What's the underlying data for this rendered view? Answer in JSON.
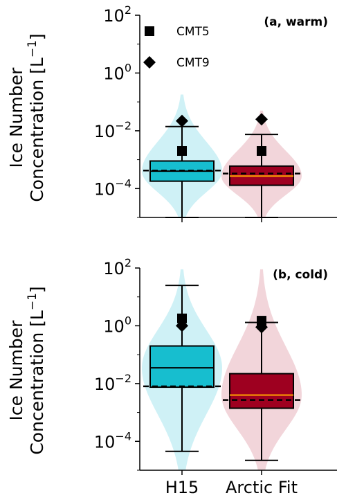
{
  "chart_data": [
    {
      "type": "box",
      "subtype": "box-and-violin",
      "panel_label": "(a, warm)",
      "ylabel_line1": "Ice Number",
      "ylabel_line2": "Concentration [L",
      "ylabel_sup": "−1",
      "ylabel_close": "]",
      "yscale": "log",
      "ylim": [
        1e-05,
        100
      ],
      "yticks": [
        {
          "base": "10",
          "exp": "2",
          "value": 100
        },
        {
          "base": "10",
          "exp": "0",
          "value": 1
        },
        {
          "base": "10",
          "exp": "−2",
          "value": 0.01
        },
        {
          "base": "10",
          "exp": "−4",
          "value": 0.0001
        }
      ],
      "categories": [
        "H15",
        "Arctic Fit"
      ],
      "legend_position": "upper-left",
      "legend": [
        {
          "label": "CMT5",
          "marker": "square"
        },
        {
          "label": "CMT9",
          "marker": "diamond"
        }
      ],
      "boxes": [
        {
          "category": "H15",
          "color": "#17becf",
          "violin_color": "#a8e6ef",
          "whisker_low": 1e-05,
          "q1": 0.00018,
          "median": 0.0004,
          "q3": 0.0009,
          "whisker_high": 0.014,
          "mean": 0.00042,
          "cmt5": 0.002,
          "cmt9": 0.022,
          "violin_range": [
            1e-05,
            0.18
          ]
        },
        {
          "category": "Arctic Fit",
          "color": "#9e0020",
          "violin_color": "#e8b2bc",
          "whisker_low": 1e-05,
          "q1": 0.00013,
          "median": 0.00027,
          "q3": 0.0006,
          "whisker_high": 0.0075,
          "mean": 0.00033,
          "cmt5": 0.002,
          "cmt9": 0.025,
          "violin_range": [
            1e-05,
            0.05
          ]
        }
      ]
    },
    {
      "type": "box",
      "subtype": "box-and-violin",
      "panel_label": "(b, cold)",
      "ylabel_line1": "Ice Number",
      "ylabel_line2": "Concentration [L",
      "ylabel_sup": "−1",
      "ylabel_close": "]",
      "yscale": "log",
      "ylim": [
        1e-05,
        100
      ],
      "yticks": [
        {
          "base": "10",
          "exp": "2",
          "value": 100
        },
        {
          "base": "10",
          "exp": "0",
          "value": 1
        },
        {
          "base": "10",
          "exp": "−2",
          "value": 0.01
        },
        {
          "base": "10",
          "exp": "−4",
          "value": 0.0001
        }
      ],
      "categories": [
        "H15",
        "Arctic Fit"
      ],
      "boxes": [
        {
          "category": "H15",
          "color": "#17becf",
          "violin_color": "#a8e6ef",
          "whisker_low": 4.5e-05,
          "q1": 0.0075,
          "median": 0.035,
          "q3": 0.2,
          "whisker_high": 25,
          "mean": 0.008,
          "cmt5": 1.8,
          "cmt9": 1.0,
          "violin_range": [
            1e-05,
            90
          ]
        },
        {
          "category": "Arctic Fit",
          "color": "#9e0020",
          "violin_color": "#e8b2bc",
          "whisker_low": 2.2e-05,
          "q1": 0.0014,
          "median": 0.004,
          "q3": 0.022,
          "whisker_high": 1.3,
          "mean": 0.0027,
          "cmt5": 1.5,
          "cmt9": 0.9,
          "violin_range": [
            1e-05,
            90
          ]
        }
      ]
    }
  ]
}
